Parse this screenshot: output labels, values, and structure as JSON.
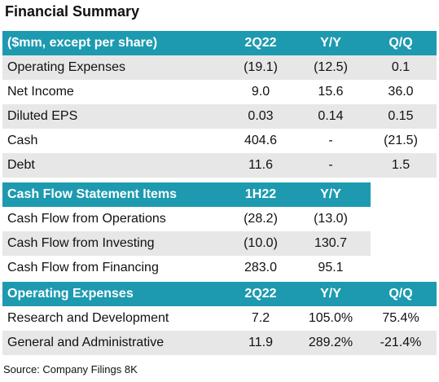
{
  "title": "Financial Summary",
  "sections": [
    {
      "header": [
        "($mm, except per share)",
        "2Q22",
        "Y/Y",
        "Q/Q"
      ],
      "rows": [
        [
          "Operating Expenses",
          "(19.1)",
          "(12.5)",
          "0.1"
        ],
        [
          "Net Income",
          "9.0",
          "15.6",
          "36.0"
        ],
        [
          "Diluted EPS",
          "0.03",
          "0.14",
          "0.15"
        ],
        [
          "Cash",
          "404.6",
          "-",
          "(21.5)"
        ],
        [
          "Debt",
          "11.6",
          "-",
          "1.5"
        ]
      ]
    },
    {
      "header": [
        "Cash Flow Statement Items",
        "1H22",
        "Y/Y"
      ],
      "rows": [
        [
          "Cash Flow from Operations",
          "(28.2)",
          "(13.0)"
        ],
        [
          "Cash Flow from Investing",
          "(10.0)",
          "130.7"
        ],
        [
          "Cash Flow from Financing",
          "283.0",
          "95.1"
        ]
      ]
    },
    {
      "header": [
        "Operating Expenses",
        "2Q22",
        "Y/Y",
        "Q/Q"
      ],
      "rows": [
        [
          "Research and Development",
          "7.2",
          "105.0%",
          "75.4%"
        ],
        [
          "General and Administrative",
          "11.9",
          "289.2%",
          "-21.4%"
        ]
      ]
    }
  ],
  "source": "Source: Company Filings 8K"
}
